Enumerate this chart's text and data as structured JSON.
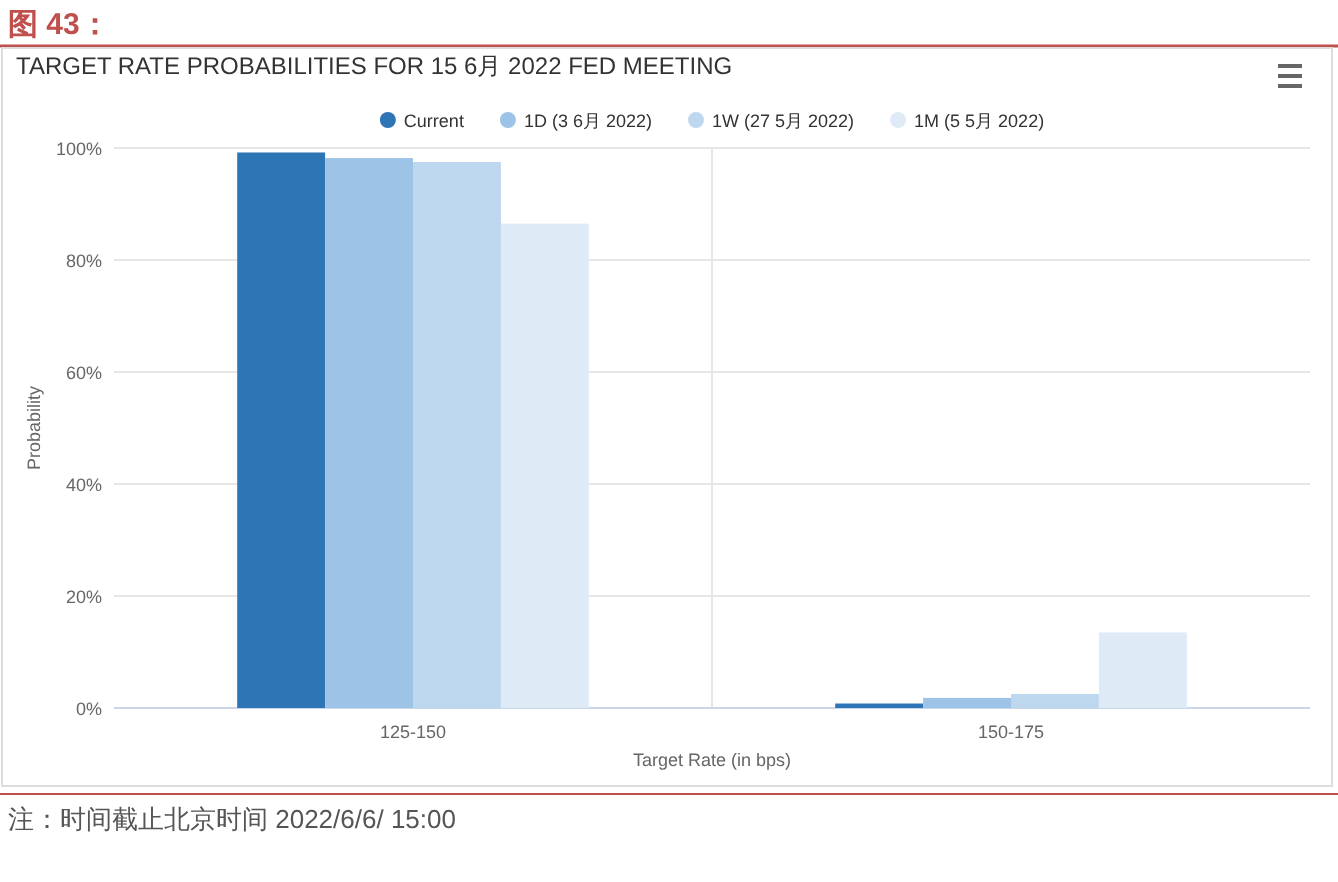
{
  "chart_data": {
    "type": "bar",
    "title": "图 43：",
    "subtitle": "TARGET RATE PROBABILITIES FOR 15 6月 2022 FED MEETING",
    "categories": [
      "125-150",
      "150-175"
    ],
    "series": [
      {
        "name": "Current",
        "color": "#2e75b6",
        "values": [
          99.2,
          0.8
        ]
      },
      {
        "name": "1D (3 6月 2022)",
        "color": "#9dc3e6",
        "values": [
          98.2,
          1.8
        ]
      },
      {
        "name": "1W (27 5月 2022)",
        "color": "#bdd7ee",
        "values": [
          97.5,
          2.5
        ]
      },
      {
        "name": "1M (5 5月 2022)",
        "color": "#deebf7",
        "values": [
          86.5,
          13.5
        ]
      }
    ],
    "xlabel": "Target Rate (in bps)",
    "ylabel": "Probability",
    "ylim": [
      0,
      100
    ],
    "yticks": [
      {
        "value": 0,
        "label": "0%"
      },
      {
        "value": 20,
        "label": "20%"
      },
      {
        "value": 40,
        "label": "40%"
      },
      {
        "value": 60,
        "label": "60%"
      },
      {
        "value": 80,
        "label": "80%"
      },
      {
        "value": 100,
        "label": "100%"
      }
    ],
    "grid": true,
    "legend": "top",
    "annotations": [
      "注：时间截止北京时间 2022/6/6/ 15:00"
    ]
  }
}
